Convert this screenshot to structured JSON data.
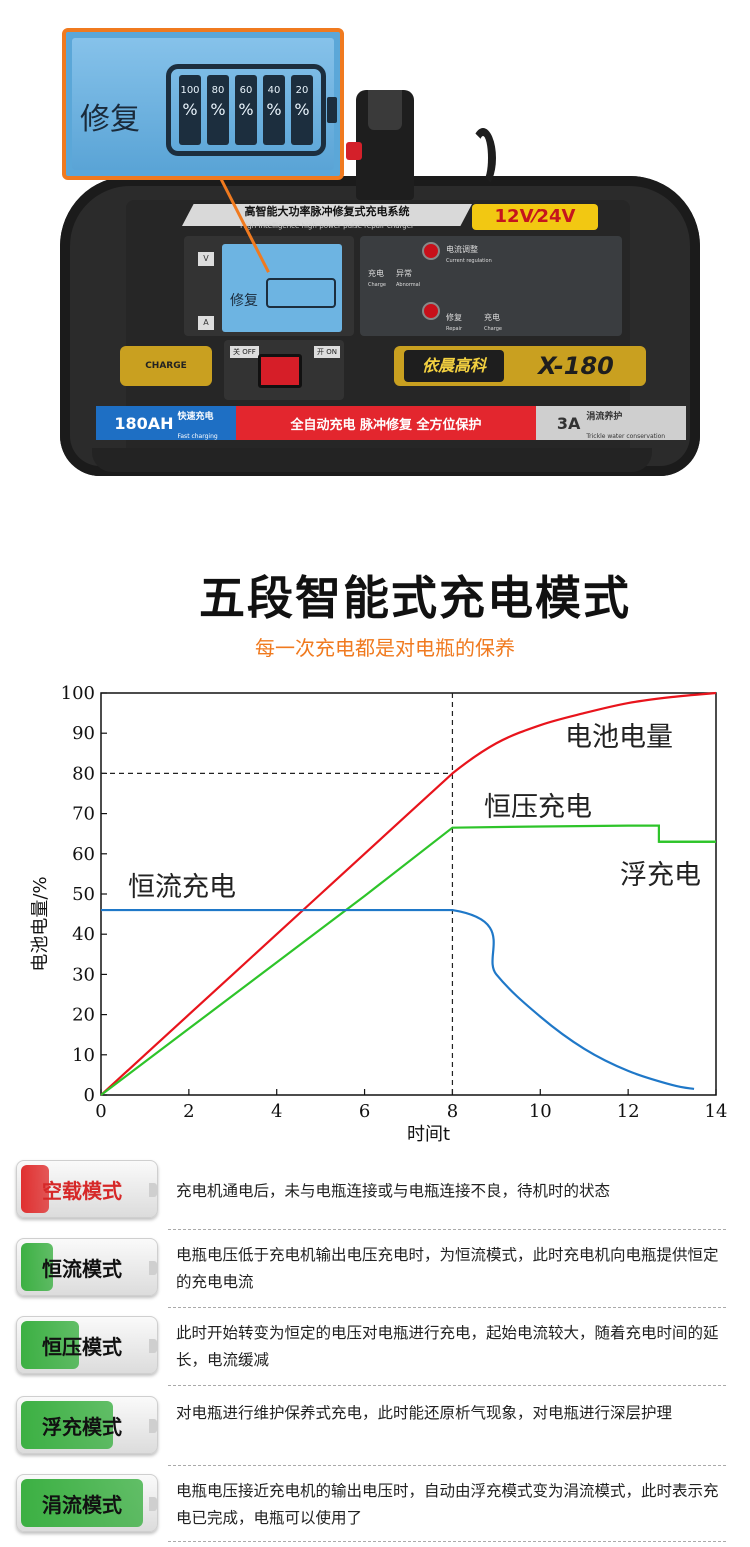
{
  "product": {
    "zoom_label": "修复",
    "zoom_levels": [
      "100",
      "80",
      "60",
      "40",
      "20"
    ],
    "pct_sign": "%",
    "title_cn": "高智能大功率脉冲修复式充电系统",
    "title_en": "High-intelligence high-power pulse repair charger",
    "voltage": "12V⁄24V",
    "lcd_label": "修复",
    "v_label": "V",
    "a_label": "A",
    "charge_label": "充电",
    "charge_en": "Charge",
    "abnormal_label": "异常",
    "abnormal_en": "Abnormal",
    "current_reg_label": "电流调整",
    "current_reg_en": "Current regulation",
    "repair_label": "修复",
    "repair_en": "Repair",
    "charge2_label": "充电",
    "charge2_en": "Charge",
    "charge_badge": "CHARGE",
    "off_label": "关 OFF",
    "on_label": "开 ON",
    "brand": "依晨高科",
    "model": "X-180",
    "capacity": "180AH",
    "fast_charge_cn": "快速充电",
    "fast_charge_en": "Fast charging",
    "features": "全自动充电  脉冲修复  全方位保护",
    "trickle_a": "3A",
    "trickle_cn": "涓流养护",
    "trickle_en": "Trickle water conservation"
  },
  "heading": {
    "title": "五段智能式充电模式",
    "subtitle": "每一次充电都是对电瓶的保养"
  },
  "chart_data": {
    "type": "line",
    "xlabel": "时间t",
    "ylabel": "电池电量/%",
    "xlim": [
      0,
      14
    ],
    "ylim": [
      0,
      100
    ],
    "xticks": [
      0,
      2,
      4,
      6,
      8,
      10,
      12,
      14
    ],
    "yticks": [
      0,
      10,
      20,
      30,
      40,
      50,
      60,
      70,
      80,
      90,
      100
    ],
    "grid": false,
    "reference_lines": [
      {
        "orientation": "vertical",
        "x": 8,
        "style": "dashed"
      },
      {
        "orientation": "horizontal",
        "y": 80,
        "x_range": [
          0,
          8
        ],
        "style": "dashed"
      }
    ],
    "series": [
      {
        "name": "电池电量",
        "color": "#e8141c",
        "x": [
          0,
          1,
          2,
          3,
          4,
          5,
          6,
          7,
          8,
          9,
          10,
          11,
          12,
          13,
          14
        ],
        "y": [
          0,
          10,
          20,
          30,
          40,
          50,
          60,
          70,
          80,
          87.5,
          92,
          95,
          97.5,
          99,
          100
        ]
      },
      {
        "name": "恒压充电",
        "color": "#2ec42a",
        "x": [
          0,
          2,
          4,
          6,
          8,
          10,
          12,
          12.7,
          12.7,
          14
        ],
        "y": [
          0,
          16.5,
          33,
          49.5,
          66.5,
          66.8,
          67,
          67,
          63,
          63
        ]
      },
      {
        "name": "浮充电",
        "color": "#2ec42a",
        "x": [
          12.7,
          14
        ],
        "y": [
          63,
          63
        ]
      },
      {
        "name": "恒流充电",
        "color": "#1f78c8",
        "x": [
          0,
          8,
          9,
          10,
          11,
          12,
          13,
          13.5
        ],
        "y": [
          46,
          46,
          30,
          19.5,
          11.5,
          6,
          2.5,
          1.5
        ]
      }
    ]
  },
  "modes": [
    {
      "name": "空载模式",
      "color": "#e03030",
      "fill": 0.22,
      "label_color": "#d62828",
      "desc": "充电机通电后，未与电瓶连接或与电瓶连接不良，待机时的状态"
    },
    {
      "name": "恒流模式",
      "color": "#3cb043",
      "fill": 0.25,
      "label_color": "#111111",
      "desc": "电瓶电压低于充电机输出电压充电时，为恒流模式，此时充电机向电瓶提供恒定的充电电流"
    },
    {
      "name": "恒压模式",
      "color": "#3cb043",
      "fill": 0.45,
      "label_color": "#111111",
      "desc": "此时开始转变为恒定的电压对电瓶进行充电，起始电流较大，随着充电时间的延长，电流缓减"
    },
    {
      "name": "浮充模式",
      "color": "#3cb043",
      "fill": 0.72,
      "label_color": "#111111",
      "desc": "对电瓶进行维护保养式充电，此时能还原析气现象，对电瓶进行深层护理"
    },
    {
      "name": "涓流模式",
      "color": "#3cb043",
      "fill": 0.95,
      "label_color": "#111111",
      "desc": "电瓶电压接近充电机的输出电压时，自动由浮充模式变为涓流模式，此时表示充电已完成，电瓶可以使用了"
    }
  ]
}
